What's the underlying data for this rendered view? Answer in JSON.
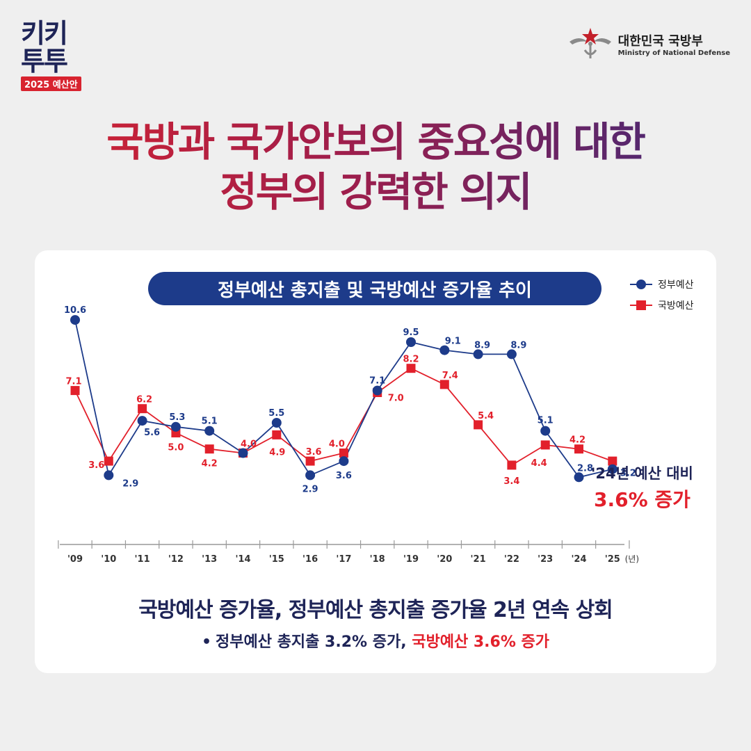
{
  "brand": {
    "line1": "키키",
    "line2": "투투",
    "sub": "2025 예산안"
  },
  "ministry": {
    "name_ko": "대한민국 국방부",
    "name_en": "Ministry of National Defense"
  },
  "headline": {
    "line1": "국방과 국가안보의 중요성에 대한",
    "line2": "정부의 강력한 의지"
  },
  "colors": {
    "gov": "#1d3b8a",
    "defense": "#e2202b"
  },
  "chart_data": {
    "type": "line",
    "title": "정부예산 총지출 및 국방예산 증가율 추이",
    "categories": [
      "'09",
      "'10",
      "'11",
      "'12",
      "'13",
      "'14",
      "'15",
      "'16",
      "'17",
      "'18",
      "'19",
      "'20",
      "'21",
      "'22",
      "'23",
      "'24",
      "'25"
    ],
    "x_unit": "(년)",
    "legend_position": "top-right",
    "series": [
      {
        "name": "정부예산",
        "marker": "circle",
        "values": [
          10.6,
          2.9,
          5.6,
          5.3,
          5.1,
          4.0,
          5.5,
          2.9,
          3.6,
          7.1,
          9.5,
          9.1,
          8.9,
          8.9,
          5.1,
          2.8,
          3.2
        ]
      },
      {
        "name": "국방예산",
        "marker": "square",
        "values": [
          7.1,
          3.6,
          6.2,
          5.0,
          4.2,
          4.0,
          4.9,
          3.6,
          4.0,
          7.0,
          8.2,
          7.4,
          5.4,
          3.4,
          4.4,
          4.2,
          3.6
        ]
      }
    ],
    "annotation": {
      "line1": "'24년 예산 대비",
      "line2": "3.6% 증가"
    }
  },
  "summary": {
    "text": "국방예산 증가율, 정부예산 총지출 증가율 2년 연속 상회"
  },
  "bullet": {
    "dot": "•",
    "part1": "정부예산 총지출 3.2% 증가,",
    "part2": "국방예산 3.6% 증가"
  }
}
